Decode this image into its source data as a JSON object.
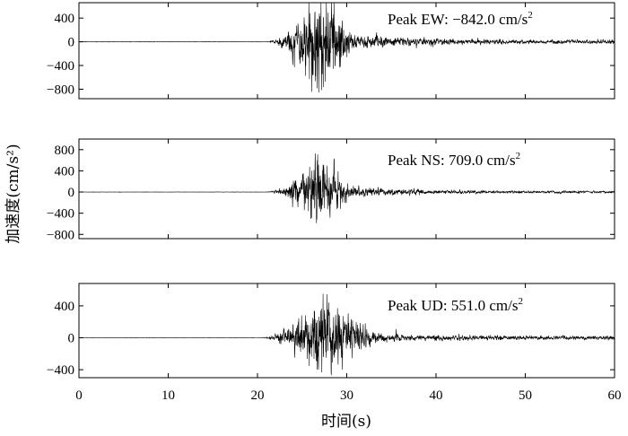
{
  "chart_data": {
    "type": "line",
    "xlabel": "时间(s)",
    "ylabel": "加速度(cm/s²)",
    "xlim": [
      0,
      60
    ],
    "xticks": [
      "0",
      "10",
      "20",
      "30",
      "40",
      "50",
      "60"
    ],
    "grid": false,
    "panels": [
      {
        "name": "EW",
        "annotation_prefix": "Peak EW: ",
        "annotation_value": "−842.0 cm/s",
        "annotation_sup": "2",
        "peak": -842.0,
        "ylim": [
          -960,
          660
        ],
        "yticks": [
          400,
          0,
          -400,
          -800
        ],
        "ytick_labels": [
          "400",
          "0",
          "−400",
          "−800"
        ],
        "envelope": {
          "onset": 20.5,
          "center": 26.5,
          "rise": 3.5,
          "decay": 2.4,
          "tail": 0.035,
          "base_amp": 500
        }
      },
      {
        "name": "NS",
        "annotation_prefix": "Peak NS: ",
        "annotation_value": "709.0 cm/s",
        "annotation_sup": "2",
        "peak": 709.0,
        "ylim": [
          -880,
          1000
        ],
        "yticks": [
          800,
          400,
          0,
          -400,
          -800
        ],
        "ytick_labels": [
          "800",
          "400",
          "0",
          "−400",
          "−800"
        ],
        "envelope": {
          "onset": 20.5,
          "center": 26.6,
          "rise": 3.5,
          "decay": 2.0,
          "tail": 0.03,
          "base_amp": 380
        }
      },
      {
        "name": "UD",
        "annotation_prefix": "Peak UD: ",
        "annotation_value": "551.0 cm/s",
        "annotation_sup": "2",
        "peak": 551.0,
        "ylim": [
          -500,
          680
        ],
        "yticks": [
          400,
          0,
          -400
        ],
        "ytick_labels": [
          "400",
          "0",
          "−400"
        ],
        "envelope": {
          "onset": 19.8,
          "center": 26.4,
          "rise": 4.5,
          "decay": 3.6,
          "tail": 0.05,
          "base_amp": 260
        }
      }
    ]
  }
}
